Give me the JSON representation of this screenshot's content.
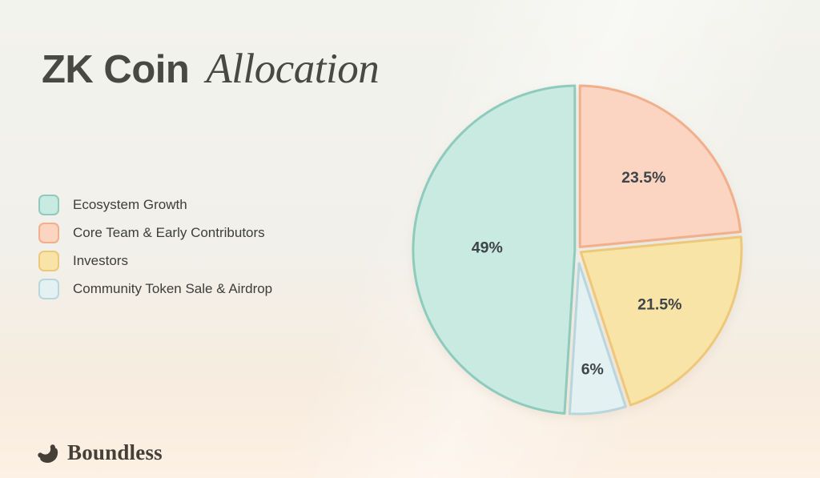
{
  "header": {
    "title_regular": "ZK Coin",
    "title_italic": "Allocation"
  },
  "chart_data": {
    "type": "pie",
    "title": "ZK Coin Allocation",
    "units": "percent",
    "start_angle_deg": 183.6,
    "clockwise": true,
    "legend_position": "left",
    "slices": [
      {
        "label": "Ecosystem Growth",
        "value": 49,
        "display": "49%",
        "fill": "#c8eae1",
        "stroke": "#8ecbbd",
        "label_r": 0.55
      },
      {
        "label": "Core Team & Early Contributors",
        "value": 23.5,
        "display": "23.5%",
        "fill": "#fbd4c2",
        "stroke": "#f1af8b",
        "label_r": 0.6
      },
      {
        "label": "Investors",
        "value": 21.5,
        "display": "21.5%",
        "fill": "#f9e4a8",
        "stroke": "#eec878",
        "label_r": 0.6
      },
      {
        "label": "Community Token Sale & Airdrop",
        "value": 6,
        "display": "6%",
        "fill": "#e4f1f3",
        "stroke": "#b7d6de",
        "label_r": 0.73
      }
    ]
  },
  "footer": {
    "brand": "Boundless"
  },
  "colors": {
    "title_text": "#484a42",
    "legend_text": "#3c3f37",
    "slice_label_text": "#3e4447",
    "logo": "#443f37",
    "background_top": "#f3f3ee",
    "background_bottom": "#fdf0e4"
  }
}
